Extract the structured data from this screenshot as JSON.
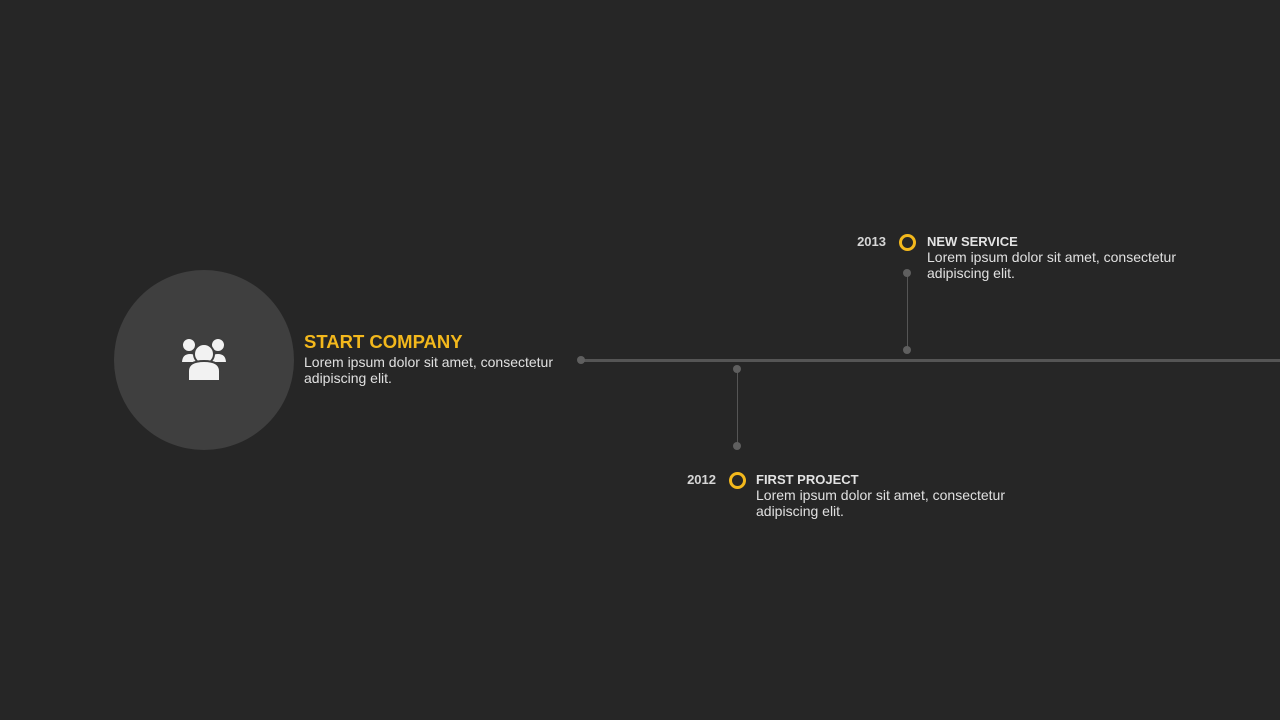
{
  "start": {
    "icon": "group-users-icon",
    "title": "START COMPANY",
    "description_lines": [
      "Lorem ipsum dolor sit amet, consectetur",
      "adipiscing elit."
    ]
  },
  "events": [
    {
      "year": "2013",
      "title": "NEW SERVICE",
      "description_lines": [
        "Lorem ipsum dolor sit amet, consectetur",
        "adipiscing elit."
      ]
    },
    {
      "year": "2012",
      "title": "FIRST PROJECT",
      "description_lines": [
        "Lorem ipsum dolor sit amet, consectetur",
        "adipiscing elit."
      ]
    }
  ],
  "colors": {
    "background": "#262626",
    "accent": "#f3b81c",
    "circle": "#3f3f3f",
    "line": "#555555"
  }
}
